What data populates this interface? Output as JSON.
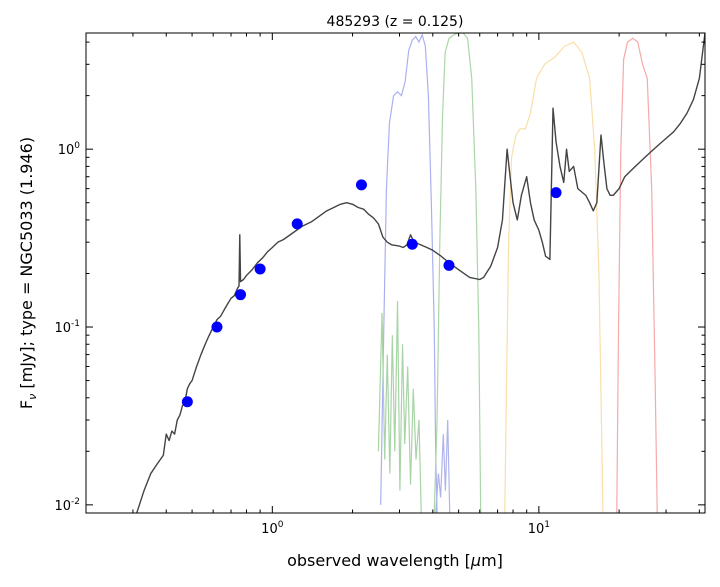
{
  "chart_data": {
    "type": "line",
    "title": "485293 (z = 0.125)",
    "xlabel_main": "observed wavelength [",
    "xlabel_mu": "μ",
    "xlabel_end": "m]",
    "ylabel_pre": "F",
    "ylabel_sub": "ν",
    "ylabel_post": " [mJy];  type = NGC5033 (1.946)",
    "xscale": "log",
    "yscale": "log",
    "xlim": [
      0.2,
      42
    ],
    "ylim": [
      0.009,
      4.5
    ],
    "grid": false,
    "x_major_ticks": [
      {
        "value": 1,
        "base": "10",
        "exp": "0"
      },
      {
        "value": 10,
        "base": "10",
        "exp": "1"
      }
    ],
    "y_major_ticks": [
      {
        "value": 0.01,
        "base": "10",
        "exp": "-2"
      },
      {
        "value": 0.1,
        "base": "10",
        "exp": "-1"
      },
      {
        "value": 1,
        "base": "10",
        "exp": "0"
      }
    ],
    "sed_template": {
      "color": "#444444",
      "points": [
        [
          0.31,
          0.009
        ],
        [
          0.33,
          0.012
        ],
        [
          0.35,
          0.015
        ],
        [
          0.37,
          0.017
        ],
        [
          0.39,
          0.019
        ],
        [
          0.4,
          0.025
        ],
        [
          0.41,
          0.023
        ],
        [
          0.42,
          0.026
        ],
        [
          0.43,
          0.025
        ],
        [
          0.44,
          0.03
        ],
        [
          0.45,
          0.032
        ],
        [
          0.46,
          0.036
        ],
        [
          0.47,
          0.038
        ],
        [
          0.48,
          0.045
        ],
        [
          0.49,
          0.048
        ],
        [
          0.5,
          0.05
        ],
        [
          0.52,
          0.06
        ],
        [
          0.54,
          0.07
        ],
        [
          0.56,
          0.08
        ],
        [
          0.58,
          0.09
        ],
        [
          0.6,
          0.1
        ],
        [
          0.62,
          0.11
        ],
        [
          0.64,
          0.115
        ],
        [
          0.66,
          0.125
        ],
        [
          0.68,
          0.135
        ],
        [
          0.7,
          0.145
        ],
        [
          0.72,
          0.15
        ],
        [
          0.74,
          0.165
        ],
        [
          0.75,
          0.17
        ],
        [
          0.755,
          0.33
        ],
        [
          0.76,
          0.18
        ],
        [
          0.78,
          0.185
        ],
        [
          0.8,
          0.195
        ],
        [
          0.84,
          0.21
        ],
        [
          0.88,
          0.23
        ],
        [
          0.92,
          0.245
        ],
        [
          0.96,
          0.265
        ],
        [
          1.0,
          0.28
        ],
        [
          1.05,
          0.3
        ],
        [
          1.1,
          0.31
        ],
        [
          1.2,
          0.34
        ],
        [
          1.3,
          0.37
        ],
        [
          1.4,
          0.39
        ],
        [
          1.5,
          0.42
        ],
        [
          1.6,
          0.45
        ],
        [
          1.7,
          0.47
        ],
        [
          1.8,
          0.49
        ],
        [
          1.9,
          0.5
        ],
        [
          2.0,
          0.49
        ],
        [
          2.1,
          0.47
        ],
        [
          2.2,
          0.46
        ],
        [
          2.3,
          0.43
        ],
        [
          2.4,
          0.41
        ],
        [
          2.5,
          0.38
        ],
        [
          2.6,
          0.32
        ],
        [
          2.7,
          0.3
        ],
        [
          2.8,
          0.29
        ],
        [
          3.0,
          0.285
        ],
        [
          3.1,
          0.28
        ],
        [
          3.2,
          0.29
        ],
        [
          3.3,
          0.33
        ],
        [
          3.4,
          0.3
        ],
        [
          3.6,
          0.29
        ],
        [
          3.8,
          0.28
        ],
        [
          4.0,
          0.27
        ],
        [
          4.3,
          0.25
        ],
        [
          4.6,
          0.23
        ],
        [
          5.0,
          0.21
        ],
        [
          5.5,
          0.19
        ],
        [
          6.0,
          0.185
        ],
        [
          6.2,
          0.19
        ],
        [
          6.6,
          0.22
        ],
        [
          7.0,
          0.28
        ],
        [
          7.3,
          0.4
        ],
        [
          7.6,
          1.0
        ],
        [
          7.8,
          0.7
        ],
        [
          8.0,
          0.5
        ],
        [
          8.3,
          0.4
        ],
        [
          8.6,
          0.55
        ],
        [
          9.0,
          0.7
        ],
        [
          9.3,
          0.5
        ],
        [
          9.6,
          0.4
        ],
        [
          10.0,
          0.35
        ],
        [
          10.3,
          0.3
        ],
        [
          10.6,
          0.25
        ],
        [
          11.0,
          0.24
        ],
        [
          11.3,
          1.7
        ],
        [
          11.6,
          1.1
        ],
        [
          12.0,
          0.8
        ],
        [
          12.4,
          0.65
        ],
        [
          12.7,
          1.0
        ],
        [
          13.0,
          0.75
        ],
        [
          13.5,
          0.8
        ],
        [
          14.0,
          0.6
        ],
        [
          15.0,
          0.55
        ],
        [
          15.5,
          0.5
        ],
        [
          16.0,
          0.45
        ],
        [
          16.5,
          0.5
        ],
        [
          17.1,
          1.2
        ],
        [
          17.6,
          0.8
        ],
        [
          18.0,
          0.6
        ],
        [
          18.5,
          0.55
        ],
        [
          19.0,
          0.55
        ],
        [
          20.0,
          0.6
        ],
        [
          21.0,
          0.7
        ],
        [
          22.0,
          0.75
        ],
        [
          24.0,
          0.85
        ],
        [
          26.0,
          0.95
        ],
        [
          28.0,
          1.05
        ],
        [
          30.0,
          1.15
        ],
        [
          32.0,
          1.25
        ],
        [
          34.0,
          1.4
        ],
        [
          36.0,
          1.6
        ],
        [
          38.0,
          1.9
        ],
        [
          40.0,
          2.5
        ],
        [
          42.0,
          4.5
        ]
      ]
    },
    "filter_curves": [
      {
        "color": "#aab0f0",
        "points": [
          [
            2.55,
            0.01
          ],
          [
            2.62,
            0.1
          ],
          [
            2.68,
            0.6
          ],
          [
            2.75,
            1.4
          ],
          [
            2.85,
            2.0
          ],
          [
            2.95,
            2.1
          ],
          [
            3.05,
            2.0
          ],
          [
            3.15,
            2.4
          ],
          [
            3.25,
            3.6
          ],
          [
            3.35,
            4.1
          ],
          [
            3.45,
            4.3
          ],
          [
            3.55,
            4.0
          ],
          [
            3.65,
            4.4
          ],
          [
            3.75,
            3.8
          ],
          [
            3.85,
            2.0
          ],
          [
            3.95,
            0.5
          ],
          [
            4.05,
            0.1
          ],
          [
            4.1,
            0.02
          ],
          [
            4.15,
            0.009
          ]
        ]
      },
      {
        "color": "#abd6a8",
        "points": [
          [
            4.05,
            0.009
          ],
          [
            4.15,
            0.03
          ],
          [
            4.25,
            0.3
          ],
          [
            4.35,
            1.5
          ],
          [
            4.45,
            3.5
          ],
          [
            4.6,
            4.2
          ],
          [
            4.8,
            4.4
          ],
          [
            5.0,
            4.5
          ],
          [
            5.2,
            4.5
          ],
          [
            5.4,
            4.2
          ],
          [
            5.6,
            2.5
          ],
          [
            5.8,
            0.6
          ],
          [
            5.95,
            0.1
          ],
          [
            6.05,
            0.009
          ]
        ]
      },
      {
        "color": "#fadfa8",
        "points": [
          [
            7.45,
            0.009
          ],
          [
            7.55,
            0.04
          ],
          [
            7.7,
            0.3
          ],
          [
            7.9,
            0.9
          ],
          [
            8.2,
            1.2
          ],
          [
            8.5,
            1.3
          ],
          [
            8.9,
            1.3
          ],
          [
            9.3,
            1.6
          ],
          [
            9.8,
            2.5
          ],
          [
            10.5,
            3.0
          ],
          [
            11.5,
            3.3
          ],
          [
            12.5,
            3.8
          ],
          [
            13.5,
            4.0
          ],
          [
            14.5,
            3.5
          ],
          [
            15.5,
            2.5
          ],
          [
            16.2,
            1.0
          ],
          [
            16.8,
            0.2
          ],
          [
            17.4,
            0.009
          ]
        ]
      },
      {
        "color": "#f5a9a9",
        "points": [
          [
            19.6,
            0.009
          ],
          [
            19.9,
            0.1
          ],
          [
            20.3,
            1.0
          ],
          [
            20.8,
            3.2
          ],
          [
            21.5,
            4.0
          ],
          [
            22.5,
            4.2
          ],
          [
            23.5,
            4.0
          ],
          [
            24.5,
            3.0
          ],
          [
            25.5,
            2.5
          ],
          [
            26.5,
            0.6
          ],
          [
            27.3,
            0.05
          ],
          [
            27.8,
            0.009
          ]
        ]
      },
      {
        "color": "#a8d4a6",
        "points": [
          [
            2.5,
            0.02
          ],
          [
            2.58,
            0.12
          ],
          [
            2.64,
            0.018
          ],
          [
            2.7,
            0.07
          ],
          [
            2.76,
            0.015
          ],
          [
            2.82,
            0.09
          ],
          [
            2.88,
            0.02
          ],
          [
            2.95,
            0.14
          ],
          [
            3.01,
            0.012
          ],
          [
            3.08,
            0.08
          ],
          [
            3.14,
            0.022
          ],
          [
            3.22,
            0.06
          ],
          [
            3.3,
            0.013
          ],
          [
            3.38,
            0.045
          ],
          [
            3.46,
            0.018
          ],
          [
            3.55,
            0.03
          ],
          [
            3.62,
            0.009
          ]
        ]
      },
      {
        "color": "#b0b4ec",
        "points": [
          [
            4.1,
            0.009
          ],
          [
            4.2,
            0.015
          ],
          [
            4.28,
            0.011
          ],
          [
            4.38,
            0.025
          ],
          [
            4.46,
            0.012
          ],
          [
            4.55,
            0.03
          ],
          [
            4.63,
            0.009
          ]
        ]
      }
    ],
    "photometry": {
      "color": "#0000ff",
      "points": [
        [
          0.48,
          0.038
        ],
        [
          0.62,
          0.1
        ],
        [
          0.76,
          0.152
        ],
        [
          0.9,
          0.212
        ],
        [
          1.24,
          0.38
        ],
        [
          2.16,
          0.63
        ],
        [
          3.35,
          0.292
        ],
        [
          4.6,
          0.222
        ],
        [
          11.6,
          0.57
        ]
      ]
    }
  }
}
